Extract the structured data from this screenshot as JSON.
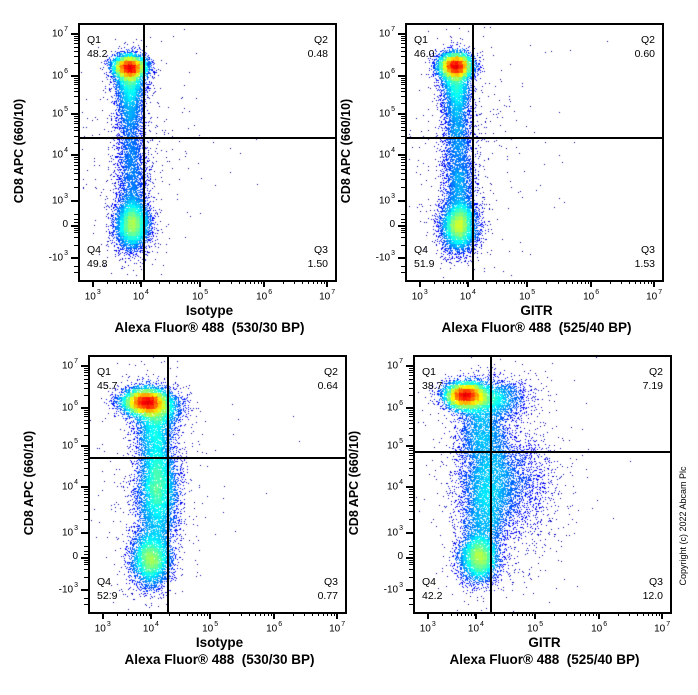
{
  "copyright": "Copyright (c) 2022 Abcam Plc",
  "colors": {
    "axis": "#000000",
    "background": "#ffffff",
    "gate": "#000000"
  },
  "chart_data": [
    {
      "type": "scatter",
      "x_axis": {
        "title": "Isotype",
        "subtitle": "Alexa Fluor® 488  (530/30 BP)",
        "scale": "biexponential",
        "range": [
          "1e3",
          "1e7"
        ]
      },
      "y_axis": {
        "title": "CD8 APC (660/10)",
        "scale": "biexponential",
        "range": [
          "-1e3",
          "1e7"
        ]
      },
      "x_ticks": [
        {
          "m": "10",
          "e": "3",
          "f": 0.05
        },
        {
          "m": "10",
          "e": "4",
          "f": 0.239
        },
        {
          "m": "10",
          "e": "5",
          "f": 0.471
        },
        {
          "m": "10",
          "e": "6",
          "f": 0.722
        },
        {
          "m": "10",
          "e": "7",
          "f": 0.969
        }
      ],
      "y_ticks": [
        {
          "m": "10",
          "e": "7",
          "f": 0.035
        },
        {
          "m": "10",
          "e": "6",
          "f": 0.2
        },
        {
          "m": "10",
          "e": "5",
          "f": 0.35
        },
        {
          "m": "10",
          "e": "4",
          "f": 0.51
        },
        {
          "m": "10",
          "e": "3",
          "f": 0.69
        },
        {
          "m": "0",
          "f": 0.79
        },
        {
          "m": "-10",
          "e": "3",
          "f": 0.915
        }
      ],
      "y_minor_extra": [
        0.74,
        0.76,
        0.7745,
        0.783,
        0.797,
        0.803,
        0.812,
        0.832,
        0.862,
        0.945,
        0.968
      ],
      "gate": {
        "vx": 0.251,
        "hy": 0.445
      },
      "quadrants": [
        {
          "name": "Q1",
          "value": "48.2"
        },
        {
          "name": "Q2",
          "value": "0.48"
        },
        {
          "name": "Q3",
          "value": "1.50"
        },
        {
          "name": "Q4",
          "value": "49.8"
        }
      ],
      "seed": 11,
      "populations": [
        {
          "x": 0.195,
          "y": 0.165,
          "sx": 0.033,
          "sy": 0.022,
          "n": 5200
        },
        {
          "x": 0.195,
          "y": 0.215,
          "sx": 0.03,
          "sy": 0.045,
          "n": 1800
        },
        {
          "x": 0.198,
          "y": 0.305,
          "sx": 0.028,
          "sy": 0.07,
          "n": 1800
        },
        {
          "x": 0.202,
          "y": 0.47,
          "sx": 0.028,
          "sy": 0.07,
          "n": 900
        },
        {
          "x": 0.205,
          "y": 0.62,
          "sx": 0.03,
          "sy": 0.08,
          "n": 1500
        },
        {
          "x": 0.206,
          "y": 0.785,
          "sx": 0.034,
          "sy": 0.05,
          "n": 4600
        },
        {
          "x": 0.21,
          "y": 0.5,
          "sx": 0.09,
          "sy": 0.3,
          "n": 380
        },
        {
          "x": 0.25,
          "y": 0.45,
          "sx": 0.22,
          "sy": 0.28,
          "n": 60
        }
      ]
    },
    {
      "type": "scatter",
      "x_axis": {
        "title": "GITR",
        "subtitle": "Alexa Fluor® 488  (525/40 BP)",
        "scale": "biexponential",
        "range": [
          "1e3",
          "1e7"
        ]
      },
      "y_axis": {
        "title": "CD8 APC (660/10)",
        "scale": "biexponential",
        "range": [
          "-1e3",
          "1e7"
        ]
      },
      "x_ticks": [
        {
          "m": "10",
          "e": "3",
          "f": 0.05
        },
        {
          "m": "10",
          "e": "4",
          "f": 0.239
        },
        {
          "m": "10",
          "e": "5",
          "f": 0.471
        },
        {
          "m": "10",
          "e": "6",
          "f": 0.722
        },
        {
          "m": "10",
          "e": "7",
          "f": 0.969
        }
      ],
      "y_ticks": [
        {
          "m": "10",
          "e": "7",
          "f": 0.035
        },
        {
          "m": "10",
          "e": "6",
          "f": 0.2
        },
        {
          "m": "10",
          "e": "5",
          "f": 0.35
        },
        {
          "m": "10",
          "e": "4",
          "f": 0.51
        },
        {
          "m": "10",
          "e": "3",
          "f": 0.69
        },
        {
          "m": "0",
          "f": 0.79
        },
        {
          "m": "-10",
          "e": "3",
          "f": 0.915
        }
      ],
      "y_minor_extra": [
        0.74,
        0.76,
        0.7745,
        0.783,
        0.797,
        0.803,
        0.812,
        0.832,
        0.862,
        0.945,
        0.968
      ],
      "gate": {
        "vx": 0.259,
        "hy": 0.445
      },
      "quadrants": [
        {
          "name": "Q1",
          "value": "46.0"
        },
        {
          "name": "Q2",
          "value": "0.60"
        },
        {
          "name": "Q3",
          "value": "1.53"
        },
        {
          "name": "Q4",
          "value": "51.9"
        }
      ],
      "seed": 22,
      "populations": [
        {
          "x": 0.19,
          "y": 0.16,
          "sx": 0.034,
          "sy": 0.024,
          "n": 5200
        },
        {
          "x": 0.192,
          "y": 0.22,
          "sx": 0.03,
          "sy": 0.05,
          "n": 1800
        },
        {
          "x": 0.196,
          "y": 0.32,
          "sx": 0.028,
          "sy": 0.08,
          "n": 1700
        },
        {
          "x": 0.2,
          "y": 0.48,
          "sx": 0.03,
          "sy": 0.07,
          "n": 1000
        },
        {
          "x": 0.204,
          "y": 0.63,
          "sx": 0.032,
          "sy": 0.08,
          "n": 1700
        },
        {
          "x": 0.205,
          "y": 0.79,
          "sx": 0.036,
          "sy": 0.05,
          "n": 4800
        },
        {
          "x": 0.22,
          "y": 0.5,
          "sx": 0.1,
          "sy": 0.3,
          "n": 420
        },
        {
          "x": 0.3,
          "y": 0.45,
          "sx": 0.25,
          "sy": 0.28,
          "n": 70
        }
      ]
    },
    {
      "type": "scatter",
      "x_axis": {
        "title": "Isotype",
        "subtitle": "Alexa Fluor® 488  (530/30 BP)",
        "scale": "biexponential",
        "range": [
          "1e3",
          "1e7"
        ]
      },
      "y_axis": {
        "title": "CD8 APC (660/10)",
        "scale": "biexponential",
        "range": [
          "-1e3",
          "1e7"
        ]
      },
      "x_ticks": [
        {
          "m": "10",
          "e": "3",
          "f": 0.05
        },
        {
          "m": "10",
          "e": "4",
          "f": 0.239
        },
        {
          "m": "10",
          "e": "5",
          "f": 0.471
        },
        {
          "m": "10",
          "e": "6",
          "f": 0.722
        },
        {
          "m": "10",
          "e": "7",
          "f": 0.969
        }
      ],
      "y_ticks": [
        {
          "m": "10",
          "e": "7",
          "f": 0.035
        },
        {
          "m": "10",
          "e": "6",
          "f": 0.2
        },
        {
          "m": "10",
          "e": "5",
          "f": 0.35
        },
        {
          "m": "10",
          "e": "4",
          "f": 0.51
        },
        {
          "m": "10",
          "e": "3",
          "f": 0.69
        },
        {
          "m": "0",
          "f": 0.79
        },
        {
          "m": "-10",
          "e": "3",
          "f": 0.915
        }
      ],
      "y_minor_extra": [
        0.74,
        0.76,
        0.7745,
        0.783,
        0.797,
        0.803,
        0.812,
        0.832,
        0.862,
        0.945,
        0.968
      ],
      "gate": {
        "vx": 0.305,
        "hy": 0.395
      },
      "quadrants": [
        {
          "name": "Q1",
          "value": "45.7"
        },
        {
          "name": "Q2",
          "value": "0.64"
        },
        {
          "name": "Q3",
          "value": "0.77"
        },
        {
          "name": "Q4",
          "value": "52.9"
        }
      ],
      "seed": 33,
      "populations": [
        {
          "x": 0.215,
          "y": 0.175,
          "sx": 0.047,
          "sy": 0.027,
          "n": 5200
        },
        {
          "x": 0.272,
          "y": 0.205,
          "sx": 0.05,
          "sy": 0.04,
          "n": 1600
        },
        {
          "x": 0.255,
          "y": 0.3,
          "sx": 0.038,
          "sy": 0.07,
          "n": 2200
        },
        {
          "x": 0.265,
          "y": 0.47,
          "sx": 0.04,
          "sy": 0.07,
          "n": 2600
        },
        {
          "x": 0.262,
          "y": 0.6,
          "sx": 0.042,
          "sy": 0.08,
          "n": 2600
        },
        {
          "x": 0.24,
          "y": 0.795,
          "sx": 0.04,
          "sy": 0.055,
          "n": 3600
        },
        {
          "x": 0.25,
          "y": 0.5,
          "sx": 0.1,
          "sy": 0.3,
          "n": 450
        },
        {
          "x": 0.3,
          "y": 0.45,
          "sx": 0.2,
          "sy": 0.28,
          "n": 60
        }
      ]
    },
    {
      "type": "scatter",
      "x_axis": {
        "title": "GITR",
        "subtitle": "Alexa Fluor® 488  (525/40 BP)",
        "scale": "biexponential",
        "range": [
          "1e3",
          "1e7"
        ]
      },
      "y_axis": {
        "title": "CD8 APC (660/10)",
        "scale": "biexponential",
        "range": [
          "-1e3",
          "1e7"
        ]
      },
      "x_ticks": [
        {
          "m": "10",
          "e": "3",
          "f": 0.05
        },
        {
          "m": "10",
          "e": "4",
          "f": 0.239
        },
        {
          "m": "10",
          "e": "5",
          "f": 0.471
        },
        {
          "m": "10",
          "e": "6",
          "f": 0.722
        },
        {
          "m": "10",
          "e": "7",
          "f": 0.969
        }
      ],
      "y_ticks": [
        {
          "m": "10",
          "e": "7",
          "f": 0.035
        },
        {
          "m": "10",
          "e": "6",
          "f": 0.2
        },
        {
          "m": "10",
          "e": "5",
          "f": 0.35
        },
        {
          "m": "10",
          "e": "4",
          "f": 0.51
        },
        {
          "m": "10",
          "e": "3",
          "f": 0.69
        },
        {
          "m": "0",
          "f": 0.79
        },
        {
          "m": "-10",
          "e": "3",
          "f": 0.915
        }
      ],
      "y_minor_extra": [
        0.74,
        0.76,
        0.7745,
        0.783,
        0.797,
        0.803,
        0.812,
        0.832,
        0.862,
        0.945,
        0.968
      ],
      "gate": {
        "vx": 0.297,
        "hy": 0.372
      },
      "quadrants": [
        {
          "name": "Q1",
          "value": "38.7"
        },
        {
          "name": "Q2",
          "value": "7.19"
        },
        {
          "name": "Q3",
          "value": "12.0"
        },
        {
          "name": "Q4",
          "value": "42.2"
        }
      ],
      "seed": 44,
      "populations": [
        {
          "x": 0.195,
          "y": 0.15,
          "sx": 0.042,
          "sy": 0.026,
          "n": 4800
        },
        {
          "x": 0.3,
          "y": 0.165,
          "sx": 0.07,
          "sy": 0.04,
          "n": 2400
        },
        {
          "x": 0.26,
          "y": 0.29,
          "sx": 0.05,
          "sy": 0.07,
          "n": 1700
        },
        {
          "x": 0.285,
          "y": 0.47,
          "sx": 0.055,
          "sy": 0.09,
          "n": 2800
        },
        {
          "x": 0.4,
          "y": 0.5,
          "sx": 0.08,
          "sy": 0.12,
          "n": 1700
        },
        {
          "x": 0.27,
          "y": 0.63,
          "sx": 0.05,
          "sy": 0.08,
          "n": 2000
        },
        {
          "x": 0.25,
          "y": 0.79,
          "sx": 0.04,
          "sy": 0.05,
          "n": 3400
        },
        {
          "x": 0.33,
          "y": 0.48,
          "sx": 0.13,
          "sy": 0.3,
          "n": 550
        },
        {
          "x": 0.35,
          "y": 0.45,
          "sx": 0.25,
          "sy": 0.28,
          "n": 80
        }
      ]
    }
  ]
}
